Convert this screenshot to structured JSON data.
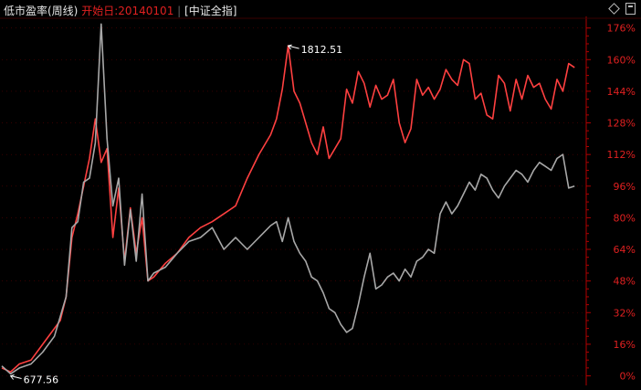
{
  "header": {
    "title": "低市盈率(周线)",
    "start_label": "开始日:",
    "start_date": "20140101",
    "benchmark": "[中证全指]"
  },
  "colors": {
    "strategy": "#ff4040",
    "benchmark": "#a8a8a8",
    "axis": "#b00000",
    "label": "#e02020",
    "grid": "#5a0000",
    "annotation": "#ffffff"
  },
  "chart_data": {
    "type": "line",
    "x_range": [
      0,
      100
    ],
    "y_range": [
      -3,
      180
    ],
    "y_ticks": [
      0,
      16,
      32,
      48,
      64,
      80,
      96,
      112,
      128,
      144,
      160,
      176
    ],
    "y_tick_labels": [
      "0%",
      "16%",
      "32%",
      "48%",
      "64%",
      "80%",
      "96%",
      "112%",
      "128%",
      "144%",
      "160%",
      "176%"
    ],
    "annotations": [
      {
        "x": 49.0,
        "y": 167,
        "text": "1812.51"
      },
      {
        "x": 1.5,
        "y": 0,
        "text": "677.56"
      }
    ],
    "series": [
      {
        "key": "strategy",
        "x": [
          0,
          1.5,
          3,
          5,
          7,
          9,
          10,
          11,
          12,
          13,
          14,
          15,
          16,
          17,
          18,
          19,
          20,
          21,
          22,
          23,
          24,
          25,
          26,
          28,
          30,
          32,
          34,
          36,
          38,
          40,
          42,
          44,
          46,
          47,
          48,
          49,
          50,
          51,
          52,
          53,
          54,
          55,
          56,
          57,
          58,
          59,
          60,
          61,
          62,
          63,
          64,
          65,
          66,
          67,
          68,
          69,
          70,
          71,
          72,
          73,
          74,
          75,
          76,
          77,
          78,
          79,
          80,
          81,
          82,
          83,
          84,
          85,
          86,
          87,
          88,
          89,
          90,
          91,
          92,
          93,
          94,
          95,
          96,
          97,
          98
        ],
        "y": [
          4,
          2,
          6,
          8,
          16,
          24,
          28,
          40,
          70,
          82,
          96,
          110,
          130,
          108,
          115,
          70,
          95,
          58,
          85,
          62,
          80,
          48,
          50,
          57,
          62,
          70,
          75,
          78,
          82,
          86,
          100,
          112,
          122,
          130,
          145,
          167,
          144,
          138,
          128,
          118,
          112,
          126,
          110,
          115,
          120,
          145,
          138,
          154,
          148,
          136,
          147,
          140,
          142,
          150,
          128,
          118,
          125,
          150,
          142,
          146,
          140,
          145,
          155,
          150,
          147,
          160,
          158,
          140,
          143,
          132,
          130,
          152,
          148,
          134,
          150,
          140,
          152,
          146,
          148,
          140,
          135,
          150,
          144,
          158,
          156
        ]
      },
      {
        "key": "benchmark",
        "x": [
          0,
          1.5,
          3,
          5,
          7,
          9,
          10,
          11,
          12,
          13,
          14,
          15,
          16,
          17,
          18,
          19,
          20,
          21,
          22,
          23,
          24,
          25,
          26,
          28,
          30,
          32,
          34,
          36,
          38,
          40,
          42,
          44,
          46,
          47,
          48,
          49,
          50,
          51,
          52,
          53,
          54,
          55,
          56,
          57,
          58,
          59,
          60,
          61,
          62,
          63,
          64,
          65,
          66,
          67,
          68,
          69,
          70,
          71,
          72,
          73,
          74,
          75,
          76,
          77,
          78,
          79,
          80,
          81,
          82,
          83,
          84,
          85,
          86,
          87,
          88,
          89,
          90,
          91,
          92,
          93,
          94,
          95,
          96,
          97,
          98
        ],
        "y": [
          5,
          1,
          4,
          6,
          12,
          20,
          30,
          40,
          75,
          78,
          98,
          100,
          118,
          178,
          120,
          86,
          100,
          56,
          84,
          58,
          92,
          48,
          52,
          55,
          62,
          68,
          70,
          75,
          64,
          70,
          64,
          70,
          76,
          78,
          68,
          80,
          68,
          62,
          58,
          50,
          48,
          42,
          34,
          32,
          26,
          22,
          24,
          36,
          50,
          62,
          44,
          46,
          50,
          52,
          48,
          54,
          50,
          58,
          60,
          64,
          62,
          82,
          88,
          82,
          86,
          92,
          98,
          94,
          102,
          100,
          94,
          90,
          96,
          100,
          104,
          102,
          98,
          104,
          108,
          106,
          104,
          110,
          112,
          95,
          96
        ]
      }
    ]
  }
}
